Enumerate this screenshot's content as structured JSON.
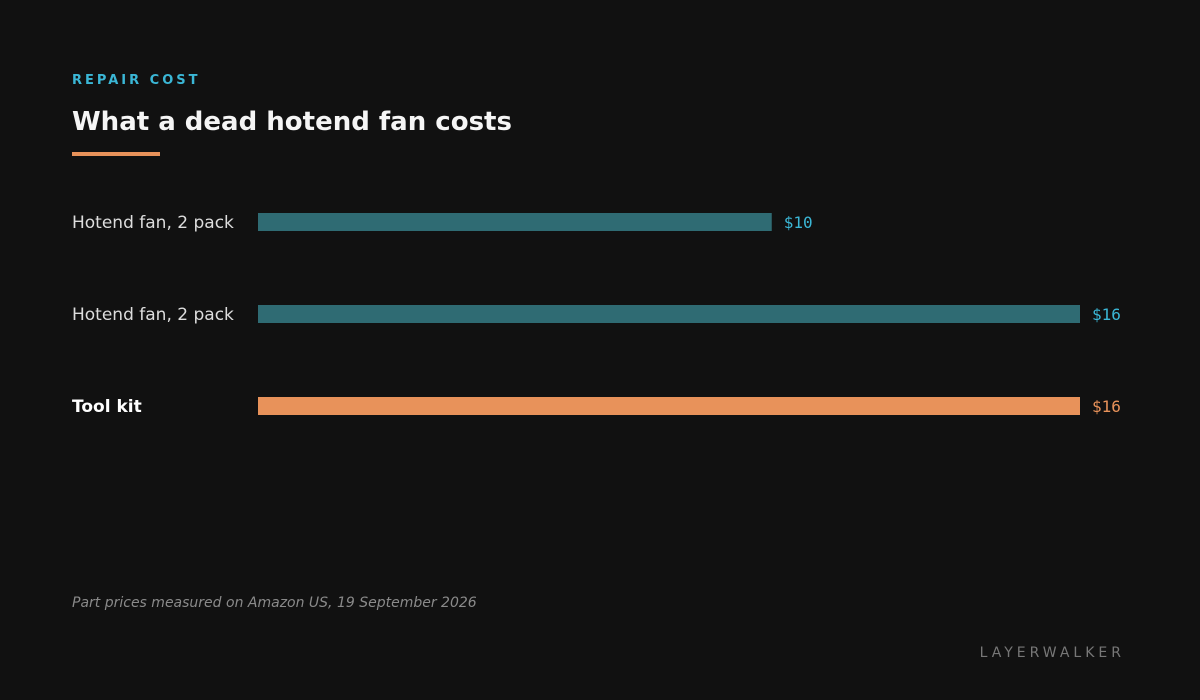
{
  "header": {
    "eyebrow": "REPAIR COST",
    "title": "What a dead hotend fan costs"
  },
  "footer": {
    "note": "Part prices measured on Amazon US, 19 September 2026",
    "brand": "LAYERWALKER"
  },
  "colors": {
    "background": "#111111",
    "accent_blue": "#3bb7d6",
    "bar_teal": "#2f6b73",
    "accent_orange": "#e8925a"
  },
  "chart_data": {
    "type": "bar",
    "orientation": "horizontal",
    "title": "What a dead hotend fan costs",
    "xlabel": "",
    "ylabel": "",
    "unit": "$",
    "xlim": [
      0,
      16
    ],
    "grid": false,
    "rows": [
      {
        "label": "Hotend fan, 2 pack",
        "value": 10,
        "value_label": "$10",
        "highlight": false
      },
      {
        "label": "Hotend fan, 2 pack",
        "value": 16,
        "value_label": "$16",
        "highlight": false
      },
      {
        "label": "Tool kit",
        "value": 16,
        "value_label": "$16",
        "highlight": true
      }
    ]
  }
}
